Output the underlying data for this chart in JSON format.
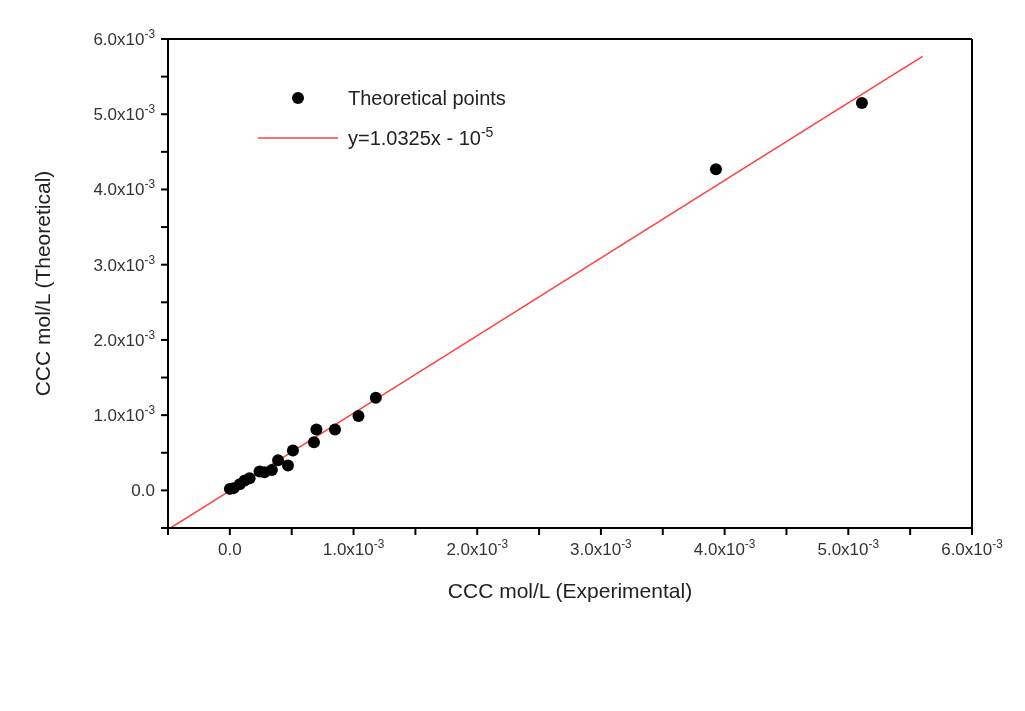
{
  "chart_data": {
    "type": "scatter",
    "xlabel": "CCC mol/L (Experimental)",
    "ylabel": "CCC mol/L (Theoretical)",
    "xlim": [
      -0.0005,
      0.006
    ],
    "ylim": [
      -0.0005,
      0.006
    ],
    "xticks": [
      {
        "value": -0.0005,
        "label": null
      },
      {
        "value": 0,
        "label": "0.0"
      },
      {
        "value": 0.0005,
        "label": null
      },
      {
        "value": 0.001,
        "label": "1.0x10$^{-3}$"
      },
      {
        "value": 0.0015,
        "label": null
      },
      {
        "value": 0.002,
        "label": "2.0x10$^{-3}$"
      },
      {
        "value": 0.0025,
        "label": null
      },
      {
        "value": 0.003,
        "label": "3.0x10$^{-3}$"
      },
      {
        "value": 0.0035,
        "label": null
      },
      {
        "value": 0.004,
        "label": "4.0x10$^{-3}$"
      },
      {
        "value": 0.0045,
        "label": null
      },
      {
        "value": 0.005,
        "label": "5.0x10$^{-3}$"
      },
      {
        "value": 0.0055,
        "label": null
      },
      {
        "value": 0.006,
        "label": "6.0x10$^{-3}$"
      }
    ],
    "yticks": [
      {
        "value": -0.0005,
        "label": null
      },
      {
        "value": 0,
        "label": "0.0"
      },
      {
        "value": 0.0005,
        "label": null
      },
      {
        "value": 0.001,
        "label": "1.0x10$^{-3}$"
      },
      {
        "value": 0.0015,
        "label": null
      },
      {
        "value": 0.002,
        "label": "2.0x10$^{-3}$"
      },
      {
        "value": 0.0025,
        "label": null
      },
      {
        "value": 0.003,
        "label": "3.0x10$^{-3}$"
      },
      {
        "value": 0.0035,
        "label": null
      },
      {
        "value": 0.004,
        "label": "4.0x10$^{-3}$"
      },
      {
        "value": 0.0045,
        "label": null
      },
      {
        "value": 0.005,
        "label": "5.0x10$^{-3}$"
      },
      {
        "value": 0.0055,
        "label": null
      },
      {
        "value": 0.006,
        "label": "6.0x10$^{-3}$"
      }
    ],
    "legend": "top left",
    "series": [
      {
        "name": "Theoretical points",
        "marker": "circle",
        "color": "#000000",
        "x": [
          0.0,
          3e-05,
          8e-05,
          0.00012,
          0.00016,
          0.00024,
          0.00028,
          0.00034,
          0.00039,
          0.00047,
          0.00051,
          0.00068,
          0.0007,
          0.00085,
          0.00104,
          0.00118,
          0.00393,
          0.00511
        ],
        "values": [
          2e-05,
          3e-05,
          8e-05,
          0.00013,
          0.00016,
          0.00025,
          0.00024,
          0.00027,
          0.0004,
          0.00033,
          0.00053,
          0.00064,
          0.00081,
          0.00081,
          0.00099,
          0.00123,
          0.00427,
          0.00515
        ]
      },
      {
        "name": "y=1.0325x - 10$^{-5}$",
        "type": "line",
        "marker": "none",
        "color": "#ff4040",
        "line_style": "solid",
        "x": [
          -0.00048,
          0.0056
        ],
        "values": [
          -0.0005,
          0.00577
        ]
      }
    ]
  }
}
